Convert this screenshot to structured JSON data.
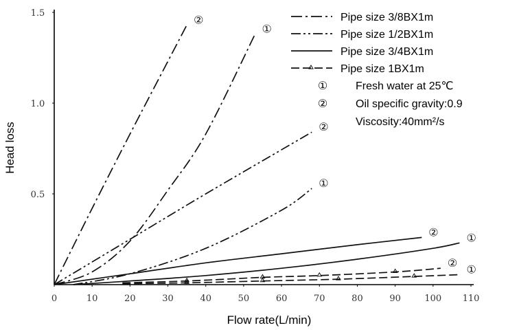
{
  "chart_data": {
    "type": "line",
    "xlabel": "Flow rate(L/min)",
    "ylabel": "Head loss",
    "xlim": [
      0,
      110
    ],
    "ylim": [
      0,
      1.5
    ],
    "x_ticks": [
      "0",
      "10",
      "20",
      "30",
      "40",
      "50",
      "60",
      "70",
      "80",
      "90",
      "100",
      "110"
    ],
    "y_ticks": [
      "0.5",
      "1.0",
      "1.5"
    ],
    "grid": false,
    "legend_position": "top-right",
    "legend": [
      {
        "label": "Pipe size 3/8BX1m",
        "style": "dash-dot"
      },
      {
        "label": "Pipe size 1/2BX1m",
        "style": "dash-dot-dot"
      },
      {
        "label": "Pipe size 3/4BX1m",
        "style": "solid"
      },
      {
        "label": "Pipe size 1BX1m",
        "style": "dash-triangle"
      }
    ],
    "notes": [
      {
        "symbol": "①",
        "text": "Fresh water at 25℃"
      },
      {
        "symbol": "②",
        "text": "Oil specific gravity:0.9",
        "text2": "Viscosity:40mm²/s"
      }
    ],
    "series": [
      {
        "pipe": "3/8B",
        "fluid": "②",
        "style": "dash-dot",
        "x": [
          0,
          10,
          20,
          30,
          35
        ],
        "y": [
          0,
          0.42,
          0.83,
          1.23,
          1.43
        ]
      },
      {
        "pipe": "3/8B",
        "fluid": "①",
        "style": "dash-dot",
        "x": [
          0,
          10,
          20,
          30,
          40,
          53
        ],
        "y": [
          0,
          0.07,
          0.24,
          0.52,
          0.83,
          1.38
        ]
      },
      {
        "pipe": "1/2B",
        "fluid": "②",
        "style": "dash-dot-dot",
        "x": [
          0,
          20,
          40,
          68
        ],
        "y": [
          0,
          0.25,
          0.5,
          0.84
        ]
      },
      {
        "pipe": "1/2B",
        "fluid": "①",
        "style": "dash-dot-dot",
        "x": [
          5,
          20,
          40,
          60,
          68
        ],
        "y": [
          0,
          0.06,
          0.2,
          0.41,
          0.53
        ]
      },
      {
        "pipe": "3/4B",
        "fluid": "②",
        "style": "solid",
        "x": [
          0,
          20,
          40,
          60,
          80,
          97
        ],
        "y": [
          0,
          0.06,
          0.12,
          0.17,
          0.22,
          0.26
        ]
      },
      {
        "pipe": "3/4B",
        "fluid": "①",
        "style": "solid",
        "x": [
          5,
          20,
          40,
          60,
          80,
          100,
          107
        ],
        "y": [
          0,
          0.02,
          0.05,
          0.09,
          0.14,
          0.2,
          0.23
        ]
      },
      {
        "pipe": "1B",
        "fluid": "②",
        "style": "dash-triangle",
        "x": [
          18,
          35,
          55,
          70,
          90,
          102
        ],
        "y": [
          0.01,
          0.02,
          0.04,
          0.05,
          0.07,
          0.09
        ]
      },
      {
        "pipe": "1B",
        "fluid": "①",
        "style": "dash-triangle",
        "x": [
          18,
          35,
          55,
          75,
          95,
          107
        ],
        "y": [
          0.005,
          0.01,
          0.02,
          0.03,
          0.045,
          0.055
        ]
      }
    ],
    "series_labels": [
      {
        "text": "②",
        "series": 0
      },
      {
        "text": "①",
        "series": 1
      },
      {
        "text": "②",
        "series": 2
      },
      {
        "text": "①",
        "series": 3
      },
      {
        "text": "②",
        "series": 4
      },
      {
        "text": "①",
        "series": 5
      },
      {
        "text": "②",
        "series": 6
      },
      {
        "text": "①",
        "series": 7
      }
    ]
  }
}
